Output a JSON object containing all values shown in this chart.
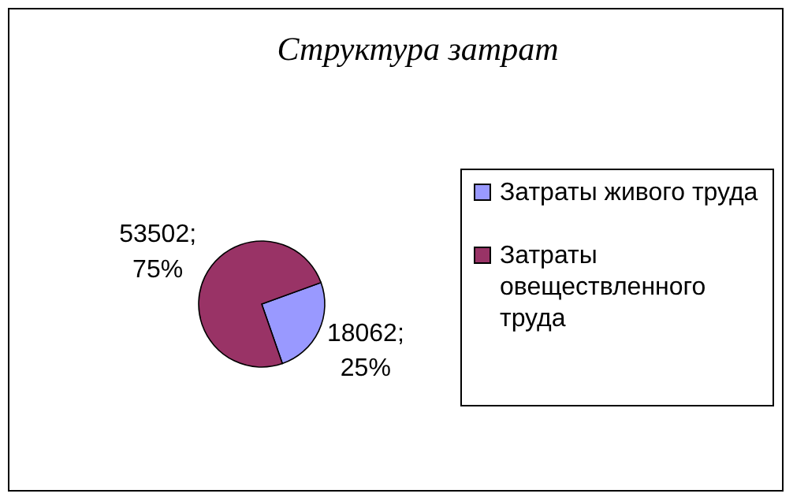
{
  "chart_data": {
    "type": "pie",
    "title": "Структура затрат",
    "categories": [
      "Затраты живого труда",
      "Затраты овеществленного труда"
    ],
    "values": [
      18062,
      53502
    ],
    "colors": [
      "#9999ff",
      "#993366"
    ],
    "value_labels": [
      "18062; 25%",
      "53502; 75%"
    ],
    "legend": "right"
  }
}
